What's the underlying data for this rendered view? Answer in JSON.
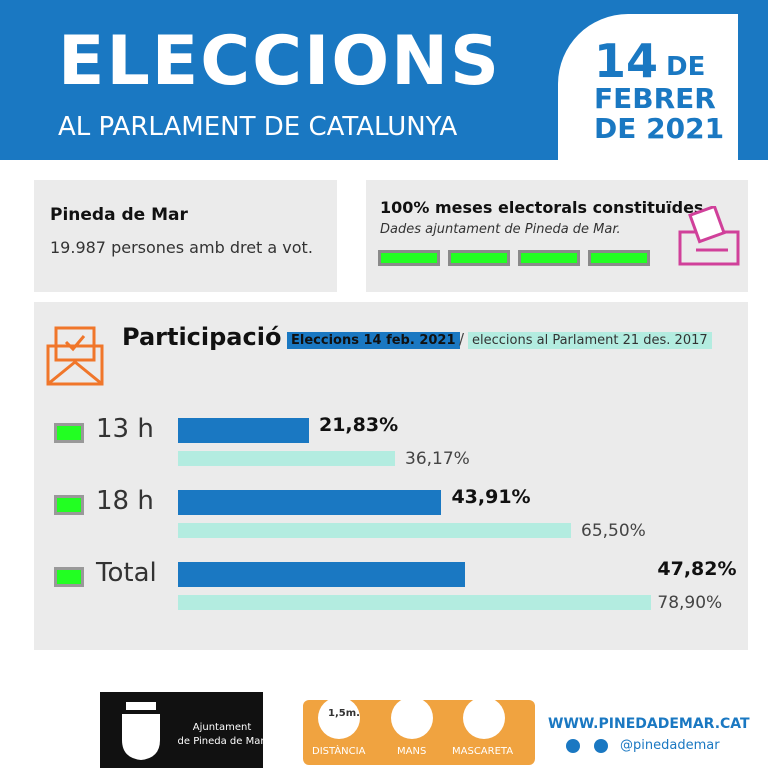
{
  "header": {
    "title": "ELECCIONS",
    "subtitle": "AL PARLAMENT DE CATALUNYA",
    "date_day": "14",
    "date_de": "DE",
    "date_month": "FEBRER",
    "date_year": "DE 2021"
  },
  "info": {
    "place": "Pineda de Mar",
    "voters": "19.987 persones amb dret a vot.",
    "tables": "100% meses electorals constituïdes.",
    "source": "Dades ajuntament de Pineda de Mar."
  },
  "chart_data": {
    "type": "bar",
    "title": "Participació",
    "separator": "/",
    "categories": [
      "13 h",
      "18 h",
      "Total"
    ],
    "series": [
      {
        "name": "Eleccions  14 feb. 2021",
        "color": "#1a78c2",
        "values": [
          21.83,
          43.91,
          47.82
        ],
        "value_labels": [
          "21,83%",
          "43,91%",
          "47,82%"
        ]
      },
      {
        "name": "eleccions al Parlament 21 des. 2017",
        "color": "#b3ece0",
        "values": [
          36.17,
          65.5,
          78.9
        ],
        "value_labels": [
          "36,17%",
          "65,50%",
          "78,90%"
        ]
      }
    ]
  },
  "footer": {
    "logo_line1": "Ajuntament",
    "logo_line2": "de Pineda de Mar",
    "distance": "1,5m.",
    "rule1": "DISTÀNCIA",
    "rule2": "MANS",
    "rule3": "MASCARETA",
    "website": "WWW.PINEDADEMAR.CAT",
    "social": "@pinedademar"
  }
}
